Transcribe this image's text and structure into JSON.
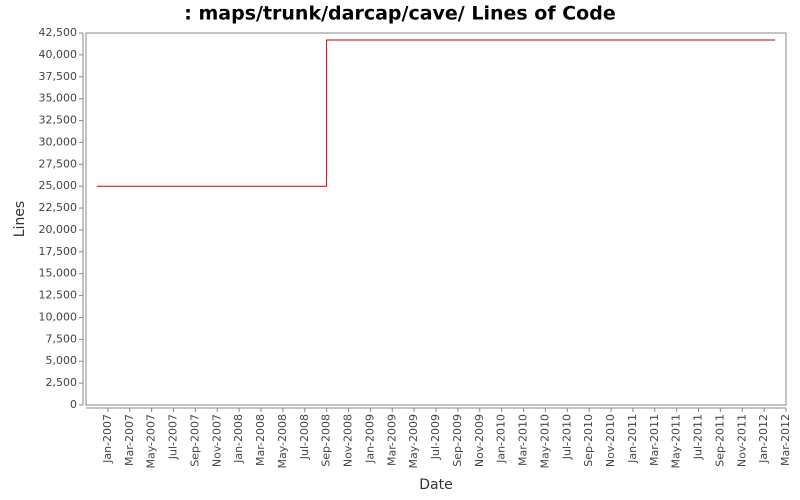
{
  "chart_data": {
    "type": "line",
    "title": ": maps/trunk/darcap/cave/ Lines of Code",
    "xlabel": "Date",
    "ylabel": "Lines",
    "color": "#cc0000",
    "step": true,
    "x": [
      "2006-12",
      "2008-09",
      "2008-09",
      "2012-02"
    ],
    "values": [
      25000,
      25000,
      41700,
      41700
    ],
    "xlim": [
      "2006-11",
      "2012-03"
    ],
    "xticks": [
      {
        "value": "2007-01",
        "label": "Jan-2007"
      },
      {
        "value": "2007-03",
        "label": "Mar-2007"
      },
      {
        "value": "2007-05",
        "label": "May-2007"
      },
      {
        "value": "2007-07",
        "label": "Jul-2007"
      },
      {
        "value": "2007-09",
        "label": "Sep-2007"
      },
      {
        "value": "2007-11",
        "label": "Nov-2007"
      },
      {
        "value": "2008-01",
        "label": "Jan-2008"
      },
      {
        "value": "2008-03",
        "label": "Mar-2008"
      },
      {
        "value": "2008-05",
        "label": "May-2008"
      },
      {
        "value": "2008-07",
        "label": "Jul-2008"
      },
      {
        "value": "2008-09",
        "label": "Sep-2008"
      },
      {
        "value": "2008-11",
        "label": "Nov-2008"
      },
      {
        "value": "2009-01",
        "label": "Jan-2009"
      },
      {
        "value": "2009-03",
        "label": "Mar-2009"
      },
      {
        "value": "2009-05",
        "label": "May-2009"
      },
      {
        "value": "2009-07",
        "label": "Jul-2009"
      },
      {
        "value": "2009-09",
        "label": "Sep-2009"
      },
      {
        "value": "2009-11",
        "label": "Nov-2009"
      },
      {
        "value": "2010-01",
        "label": "Jan-2010"
      },
      {
        "value": "2010-03",
        "label": "Mar-2010"
      },
      {
        "value": "2010-05",
        "label": "May-2010"
      },
      {
        "value": "2010-07",
        "label": "Jul-2010"
      },
      {
        "value": "2010-09",
        "label": "Sep-2010"
      },
      {
        "value": "2010-11",
        "label": "Nov-2010"
      },
      {
        "value": "2011-01",
        "label": "Jan-2011"
      },
      {
        "value": "2011-03",
        "label": "Mar-2011"
      },
      {
        "value": "2011-05",
        "label": "May-2011"
      },
      {
        "value": "2011-07",
        "label": "Jul-2011"
      },
      {
        "value": "2011-09",
        "label": "Sep-2011"
      },
      {
        "value": "2011-11",
        "label": "Nov-2011"
      },
      {
        "value": "2012-01",
        "label": "Jan-2012"
      },
      {
        "value": "2012-03",
        "label": "Mar-2012"
      }
    ],
    "ylim": [
      0,
      42500
    ],
    "yticks": [
      0,
      {
        "value": 2500,
        "label": "2,500"
      },
      {
        "value": 5000,
        "label": "5,000"
      },
      {
        "value": 7500,
        "label": "7,500"
      },
      {
        "value": 10000,
        "label": "10,000"
      },
      {
        "value": 12500,
        "label": "12,500"
      },
      {
        "value": 15000,
        "label": "15,000"
      },
      {
        "value": 17500,
        "label": "17,500"
      },
      {
        "value": 20000,
        "label": "20,000"
      },
      {
        "value": 22500,
        "label": "22,500"
      },
      {
        "value": 25000,
        "label": "25,000"
      },
      {
        "value": 27500,
        "label": "27,500"
      },
      {
        "value": 30000,
        "label": "30,000"
      },
      {
        "value": 32500,
        "label": "32,500"
      },
      {
        "value": 35000,
        "label": "35,000"
      },
      {
        "value": 37500,
        "label": "37,500"
      },
      {
        "value": 40000,
        "label": "40,000"
      },
      {
        "value": 42500,
        "label": "42,500"
      }
    ],
    "grid": false
  }
}
